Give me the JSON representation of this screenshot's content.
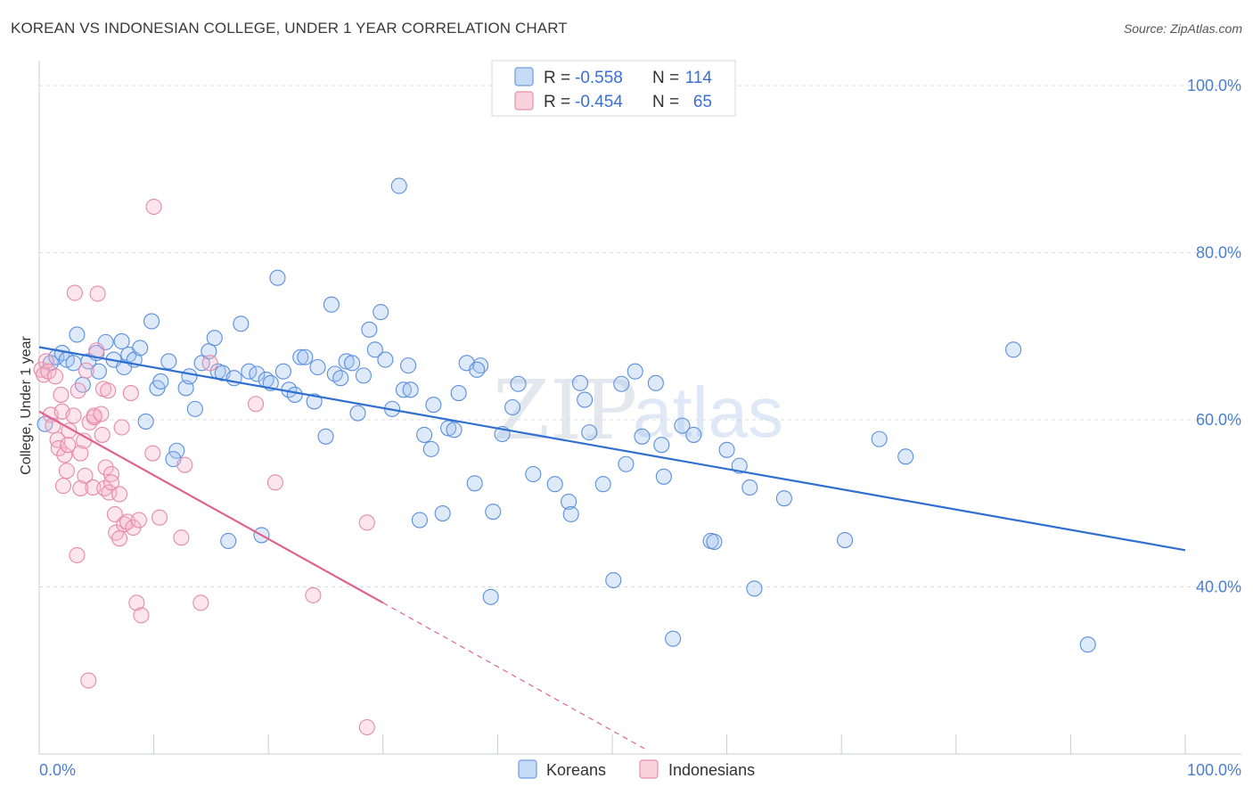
{
  "header": {
    "title": "KOREAN VS INDONESIAN COLLEGE, UNDER 1 YEAR CORRELATION CHART",
    "source": "Source: ZipAtlas.com"
  },
  "watermark": {
    "zip": "ZIP",
    "atlas": "atlas"
  },
  "colors": {
    "blue": "#5b8fdc",
    "blue_fill": "rgba(160,196,240,0.35)",
    "blue_line": "#2f6fcf",
    "pink": "#e58aa8",
    "pink_fill": "rgba(246,180,200,0.35)",
    "pink_line": "#e0628e",
    "grid": "#d9dde3",
    "axis_text": "#4a7fd0"
  },
  "legend": {
    "r_label": "R =",
    "n_label": "N =",
    "korean": {
      "r": "-0.558",
      "n": "114"
    },
    "indonesian": {
      "r": "-0.454",
      "n": "65"
    }
  },
  "bottom_legend": {
    "korean": "Koreans",
    "indonesian": "Indonesians"
  },
  "chart_data": {
    "type": "scatter",
    "title": "KOREAN VS INDONESIAN COLLEGE, UNDER 1 YEAR CORRELATION CHART",
    "xlabel": "",
    "ylabel": "College, Under 1 year",
    "xlim": [
      0,
      100
    ],
    "ylim": [
      20,
      103
    ],
    "x_tick_labels": [
      "0.0%",
      "100.0%"
    ],
    "y_ticks": [
      40,
      60,
      80,
      100
    ],
    "y_tick_labels": [
      "40.0%",
      "60.0%",
      "80.0%",
      "100.0%"
    ],
    "legend_position": "top-center",
    "series": [
      {
        "name": "Koreans",
        "color": "#5b8fdc",
        "trend": {
          "x": [
            0,
            100
          ],
          "y": [
            68.7,
            44.4
          ],
          "dashed_from": null
        },
        "points": [
          [
            0.5,
            59.5
          ],
          [
            1.0,
            66.8
          ],
          [
            1.5,
            67.5
          ],
          [
            2.0,
            68.0
          ],
          [
            2.4,
            67.2
          ],
          [
            3.0,
            66.8
          ],
          [
            3.3,
            70.2
          ],
          [
            3.8,
            64.2
          ],
          [
            4.3,
            67.0
          ],
          [
            5.0,
            68.0
          ],
          [
            5.2,
            65.8
          ],
          [
            5.8,
            69.3
          ],
          [
            6.5,
            67.2
          ],
          [
            7.2,
            69.4
          ],
          [
            7.4,
            66.3
          ],
          [
            7.8,
            67.8
          ],
          [
            8.3,
            67.2
          ],
          [
            8.8,
            68.6
          ],
          [
            9.3,
            59.8
          ],
          [
            9.8,
            71.8
          ],
          [
            10.3,
            63.8
          ],
          [
            10.6,
            64.6
          ],
          [
            11.3,
            67.0
          ],
          [
            12.0,
            56.3
          ],
          [
            11.7,
            55.3
          ],
          [
            12.8,
            63.8
          ],
          [
            13.1,
            65.2
          ],
          [
            13.6,
            61.3
          ],
          [
            14.2,
            66.8
          ],
          [
            14.8,
            68.2
          ],
          [
            15.3,
            69.8
          ],
          [
            15.6,
            65.8
          ],
          [
            16.0,
            65.6
          ],
          [
            16.5,
            45.5
          ],
          [
            17.0,
            65.0
          ],
          [
            17.6,
            71.5
          ],
          [
            18.3,
            65.8
          ],
          [
            19.0,
            65.5
          ],
          [
            19.4,
            46.2
          ],
          [
            19.8,
            64.8
          ],
          [
            20.2,
            64.4
          ],
          [
            20.8,
            77.0
          ],
          [
            21.3,
            65.8
          ],
          [
            21.8,
            63.6
          ],
          [
            22.3,
            63.0
          ],
          [
            22.8,
            67.5
          ],
          [
            23.2,
            67.5
          ],
          [
            24.0,
            62.2
          ],
          [
            24.3,
            66.3
          ],
          [
            25.0,
            58.0
          ],
          [
            25.5,
            73.8
          ],
          [
            25.8,
            65.5
          ],
          [
            26.3,
            65.0
          ],
          [
            26.8,
            67.0
          ],
          [
            27.3,
            66.8
          ],
          [
            27.8,
            60.8
          ],
          [
            28.3,
            65.3
          ],
          [
            28.8,
            70.8
          ],
          [
            29.3,
            68.4
          ],
          [
            29.8,
            72.9
          ],
          [
            30.2,
            67.2
          ],
          [
            30.8,
            61.3
          ],
          [
            31.4,
            88.0
          ],
          [
            31.8,
            63.6
          ],
          [
            32.2,
            66.5
          ],
          [
            32.4,
            63.6
          ],
          [
            33.2,
            48.0
          ],
          [
            33.6,
            58.2
          ],
          [
            34.2,
            56.5
          ],
          [
            34.4,
            61.8
          ],
          [
            35.2,
            48.8
          ],
          [
            35.7,
            59.0
          ],
          [
            36.2,
            58.8
          ],
          [
            36.6,
            63.2
          ],
          [
            37.3,
            66.8
          ],
          [
            38.0,
            52.4
          ],
          [
            38.5,
            66.5
          ],
          [
            38.2,
            66.0
          ],
          [
            39.4,
            38.8
          ],
          [
            39.6,
            49.0
          ],
          [
            40.4,
            58.3
          ],
          [
            41.3,
            61.5
          ],
          [
            41.8,
            64.3
          ],
          [
            43.1,
            53.5
          ],
          [
            45.0,
            52.3
          ],
          [
            46.2,
            50.2
          ],
          [
            46.4,
            48.7
          ],
          [
            47.2,
            64.4
          ],
          [
            47.6,
            62.4
          ],
          [
            48.0,
            58.5
          ],
          [
            49.2,
            52.3
          ],
          [
            50.1,
            40.8
          ],
          [
            50.8,
            64.3
          ],
          [
            51.2,
            54.7
          ],
          [
            52.0,
            65.8
          ],
          [
            52.6,
            58.0
          ],
          [
            53.8,
            64.4
          ],
          [
            54.3,
            57.0
          ],
          [
            54.5,
            53.2
          ],
          [
            55.3,
            33.8
          ],
          [
            56.1,
            59.3
          ],
          [
            57.1,
            58.2
          ],
          [
            58.6,
            45.5
          ],
          [
            58.9,
            45.4
          ],
          [
            60.0,
            56.4
          ],
          [
            61.1,
            54.5
          ],
          [
            62.0,
            51.9
          ],
          [
            62.4,
            39.8
          ],
          [
            65.0,
            50.6
          ],
          [
            70.3,
            45.6
          ],
          [
            73.3,
            57.7
          ],
          [
            75.6,
            55.6
          ],
          [
            85.0,
            68.4
          ],
          [
            91.5,
            33.1
          ]
        ]
      },
      {
        "name": "Indonesians",
        "color": "#e58aa8",
        "trend": {
          "x": [
            0,
            30,
            53
          ],
          "y": [
            61.0,
            38.1,
            20.5
          ],
          "dashed_from": 30
        },
        "points": [
          [
            0.2,
            66.0
          ],
          [
            0.4,
            65.4
          ],
          [
            0.6,
            67.0
          ],
          [
            0.8,
            65.8
          ],
          [
            1.0,
            60.6
          ],
          [
            1.2,
            59.3
          ],
          [
            1.4,
            65.2
          ],
          [
            1.6,
            57.6
          ],
          [
            1.7,
            56.6
          ],
          [
            1.9,
            63.0
          ],
          [
            2.0,
            61.0
          ],
          [
            2.1,
            52.1
          ],
          [
            2.2,
            55.8
          ],
          [
            2.4,
            53.9
          ],
          [
            2.5,
            57.0
          ],
          [
            2.6,
            58.7
          ],
          [
            3.0,
            60.5
          ],
          [
            3.1,
            75.2
          ],
          [
            3.4,
            63.5
          ],
          [
            3.3,
            43.8
          ],
          [
            3.6,
            51.8
          ],
          [
            3.6,
            56.0
          ],
          [
            3.9,
            57.5
          ],
          [
            4.0,
            53.3
          ],
          [
            4.1,
            65.9
          ],
          [
            4.3,
            28.8
          ],
          [
            4.4,
            59.7
          ],
          [
            4.7,
            51.9
          ],
          [
            4.8,
            60.3
          ],
          [
            4.8,
            60.5
          ],
          [
            5.0,
            68.3
          ],
          [
            5.1,
            75.1
          ],
          [
            5.4,
            60.7
          ],
          [
            5.5,
            58.2
          ],
          [
            5.6,
            63.7
          ],
          [
            5.7,
            51.8
          ],
          [
            5.8,
            54.3
          ],
          [
            6.0,
            63.5
          ],
          [
            6.1,
            51.3
          ],
          [
            6.3,
            53.5
          ],
          [
            6.3,
            52.5
          ],
          [
            6.6,
            48.7
          ],
          [
            6.7,
            46.5
          ],
          [
            7.0,
            51.1
          ],
          [
            7.0,
            45.8
          ],
          [
            7.2,
            59.1
          ],
          [
            7.4,
            47.5
          ],
          [
            7.7,
            47.8
          ],
          [
            8.0,
            63.2
          ],
          [
            8.2,
            47.1
          ],
          [
            8.5,
            38.1
          ],
          [
            8.7,
            48.0
          ],
          [
            8.9,
            36.6
          ],
          [
            9.9,
            56.0
          ],
          [
            10.0,
            85.5
          ],
          [
            10.5,
            48.3
          ],
          [
            12.4,
            45.9
          ],
          [
            12.7,
            54.6
          ],
          [
            14.1,
            38.1
          ],
          [
            14.9,
            66.8
          ],
          [
            18.9,
            61.9
          ],
          [
            20.6,
            52.5
          ],
          [
            23.9,
            39.0
          ],
          [
            28.6,
            47.7
          ],
          [
            28.6,
            23.2
          ]
        ]
      }
    ]
  }
}
